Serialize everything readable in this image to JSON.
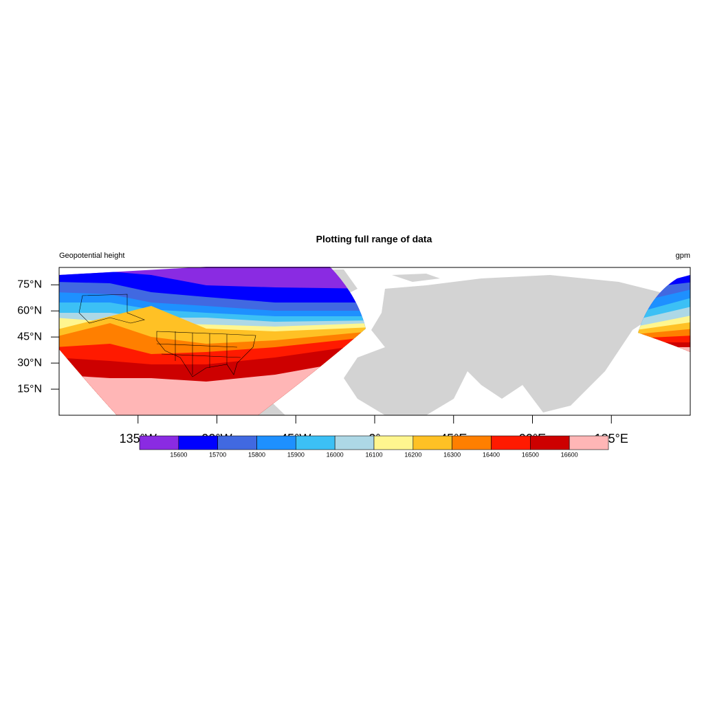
{
  "chart_data": {
    "type": "map",
    "title": "Plotting full range of data",
    "left_label": "Geopotential height",
    "right_label": "gpm",
    "xlim": [
      -180,
      180
    ],
    "ylim": [
      0,
      85
    ],
    "xticks": [
      {
        "value": -135,
        "label": "135°W"
      },
      {
        "value": -90,
        "label": "90°W"
      },
      {
        "value": -45,
        "label": "45°W"
      },
      {
        "value": 0,
        "label": "0°"
      },
      {
        "value": 45,
        "label": "45°E"
      },
      {
        "value": 90,
        "label": "90°E"
      },
      {
        "value": 135,
        "label": "135°E"
      }
    ],
    "yticks": [
      {
        "value": 15,
        "label": "15°N"
      },
      {
        "value": 30,
        "label": "30°N"
      },
      {
        "value": 45,
        "label": "45°N"
      },
      {
        "value": 60,
        "label": "60°N"
      },
      {
        "value": 75,
        "label": "75°N"
      }
    ],
    "colorbar": {
      "levels": [
        15600,
        15700,
        15800,
        15900,
        16000,
        16100,
        16200,
        16300,
        16400,
        16500,
        16600
      ],
      "colors": [
        "#8a2be2",
        "#0000ff",
        "#4169e1",
        "#1e90ff",
        "#3cc0f5",
        "#add8e6",
        "#fff68f",
        "#ffc125",
        "#ff7f00",
        "#ff1a00",
        "#cd0000",
        "#ffb6b6"
      ]
    }
  }
}
